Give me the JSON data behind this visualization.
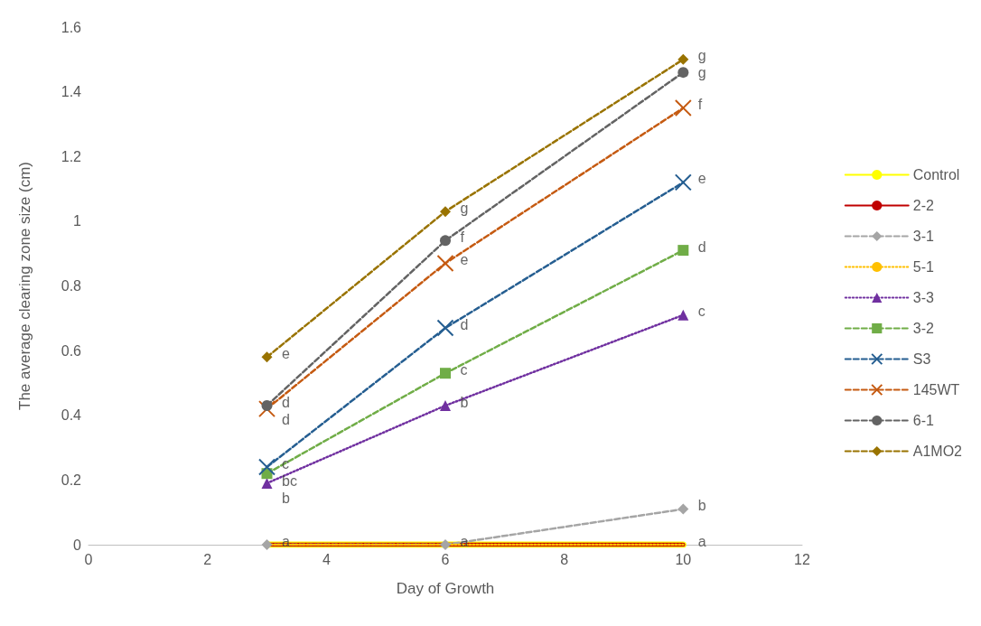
{
  "chart_data": {
    "type": "line",
    "xlabel": "Day of Growth",
    "ylabel": "The average clearing zone size (cm)",
    "x": [
      3,
      6,
      10
    ],
    "xlim": [
      0,
      12
    ],
    "xticks": [
      0,
      2,
      4,
      6,
      8,
      10,
      12
    ],
    "ylim": [
      0,
      1.6
    ],
    "yticks": [
      0,
      0.2,
      0.4,
      0.6,
      0.8,
      1,
      1.2,
      1.4,
      1.6
    ],
    "grid": false,
    "legend": "right",
    "series": [
      {
        "name": "Control",
        "color": "#ffff00",
        "values": [
          0,
          0,
          0
        ],
        "line_style": "solid",
        "marker": "none"
      },
      {
        "name": "2-2",
        "color": "#c00000",
        "values": [
          0,
          0,
          0
        ],
        "line_style": "solid",
        "marker": "none"
      },
      {
        "name": "3-1",
        "color": "#a5a5a5",
        "values": [
          0,
          0,
          0.11
        ],
        "line_style": "dashed",
        "marker": "diamond"
      },
      {
        "name": "5-1",
        "color": "#ffc000",
        "values": [
          0,
          0,
          0
        ],
        "line_style": "dotted",
        "marker": "none"
      },
      {
        "name": "3-3",
        "color": "#7030a0",
        "values": [
          0.19,
          0.43,
          0.71
        ],
        "line_style": "dotted",
        "marker": "triangle"
      },
      {
        "name": "3-2",
        "color": "#70ad47",
        "values": [
          0.22,
          0.53,
          0.91
        ],
        "line_style": "dashed",
        "marker": "square"
      },
      {
        "name": "S3",
        "color": "#255e91",
        "values": [
          0.24,
          0.67,
          1.12
        ],
        "line_style": "dashed",
        "marker": "cross"
      },
      {
        "name": "145WT",
        "color": "#c55a11",
        "values": [
          0.42,
          0.87,
          1.35
        ],
        "line_style": "dashed",
        "marker": "cross"
      },
      {
        "name": "6-1",
        "color": "#636363",
        "values": [
          0.43,
          0.94,
          1.46
        ],
        "line_style": "dashed",
        "marker": "circle"
      },
      {
        "name": "A1MO2",
        "color": "#997300",
        "values": [
          0.58,
          1.03,
          1.5
        ],
        "line_style": "dashed",
        "marker": "diamond"
      }
    ],
    "annotations": [
      {
        "text": "e",
        "x": 3,
        "y": 0.58
      },
      {
        "text": "d",
        "x": 3,
        "y": 0.43
      },
      {
        "text": "d",
        "x": 3,
        "y": 0.42
      },
      {
        "text": "c",
        "x": 3,
        "y": 0.24
      },
      {
        "text": "bc",
        "x": 3,
        "y": 0.22
      },
      {
        "text": "b",
        "x": 3,
        "y": 0.19
      },
      {
        "text": "a",
        "x": 3,
        "y": 0
      },
      {
        "text": "g",
        "x": 6,
        "y": 1.03
      },
      {
        "text": "f",
        "x": 6,
        "y": 0.94
      },
      {
        "text": "e",
        "x": 6,
        "y": 0.87
      },
      {
        "text": "d",
        "x": 6,
        "y": 0.67
      },
      {
        "text": "c",
        "x": 6,
        "y": 0.53
      },
      {
        "text": "b",
        "x": 6,
        "y": 0.43
      },
      {
        "text": "a",
        "x": 6,
        "y": 0
      },
      {
        "text": "g",
        "x": 10,
        "y": 1.5
      },
      {
        "text": "g",
        "x": 10,
        "y": 1.46
      },
      {
        "text": "f",
        "x": 10,
        "y": 1.35
      },
      {
        "text": "e",
        "x": 10,
        "y": 1.12
      },
      {
        "text": "d",
        "x": 10,
        "y": 0.91
      },
      {
        "text": "c",
        "x": 10,
        "y": 0.71
      },
      {
        "text": "b",
        "x": 10,
        "y": 0.11
      },
      {
        "text": "a",
        "x": 10,
        "y": 0
      }
    ]
  }
}
